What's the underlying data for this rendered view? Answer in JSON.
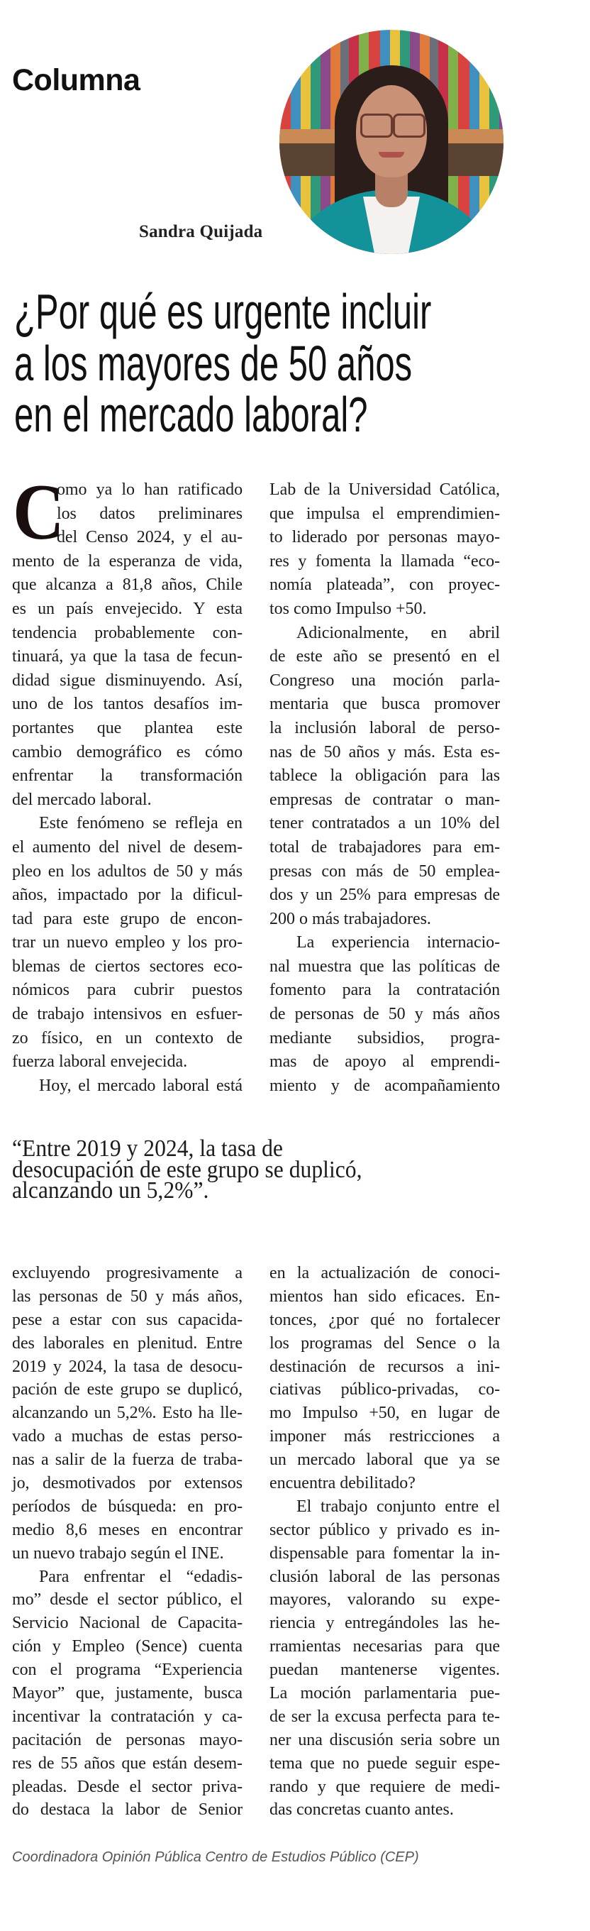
{
  "section_label": "Columna",
  "author": "Sandra Quijada",
  "headline": [
    "¿Por qué es urgente incluir",
    "a los mayores de 50 años",
    "en el mercado laboral?"
  ],
  "drop_cap": "C",
  "article": {
    "part1_left": [
      {
        "continued": false,
        "unfinished": false,
        "lines": [
          "omo ya lo han ratificado",
          "los datos preliminares",
          "del Censo 2024, y el au-",
          "mento de la esperanza de vida,",
          "que alcanza a 81,8 años, Chile",
          "es un país envejecido. Y esta",
          "tendencia probablemente con-",
          "tinuará, ya que la tasa de fecun-",
          "didad sigue disminuyendo. Así,",
          "uno de los tantos desafíos im-",
          "portantes que plantea este",
          "cambio demográfico es cómo",
          "enfrentar la transformación",
          "del mercado laboral."
        ]
      },
      {
        "continued": false,
        "unfinished": false,
        "lines": [
          "Este fenómeno se refleja en",
          "el aumento del nivel de desem-",
          "pleo en los adultos de 50 y más",
          "años, impactado por la dificul-",
          "tad para este grupo de encon-",
          "trar un nuevo empleo y los pro-",
          "blemas de ciertos sectores eco-",
          "nómicos para cubrir puestos",
          "de trabajo intensivos en esfuer-",
          "zo físico, en un contexto de",
          "fuerza laboral envejecida."
        ]
      },
      {
        "continued": false,
        "unfinished": true,
        "lines": [
          "Hoy, el mercado laboral está"
        ]
      }
    ],
    "part1_right": [
      {
        "continued": true,
        "unfinished": false,
        "lines": [
          "Lab de la Universidad Católica,",
          "que impulsa el emprendimien-",
          "to liderado por personas mayo-",
          "res y fomenta la llamada “eco-",
          "nomía plateada”, con proyec-",
          "tos como Impulso +50."
        ]
      },
      {
        "continued": false,
        "unfinished": false,
        "lines": [
          "Adicionalmente, en abril",
          "de este año se presentó en el",
          "Congreso una moción parla-",
          "mentaria que busca promover",
          "la inclusión laboral de perso-",
          "nas de 50 años y más. Esta es-",
          "tablece la obligación para las",
          "empresas de contratar o man-",
          "tener contratados a un 10% del",
          "total de trabajadores para em-",
          "presas con más de 50 emplea-",
          "dos y un 25% para empresas de",
          "200 o más trabajadores."
        ]
      },
      {
        "continued": false,
        "unfinished": true,
        "lines": [
          "La experiencia internacio-",
          "nal muestra que las políticas de",
          "fomento para la contratación",
          "de personas de 50 y más años",
          "mediante subsidios, progra-",
          "mas de apoyo al emprendi-",
          "miento y de acompañamiento"
        ]
      }
    ],
    "pull_quote": [
      "“Entre 2019 y 2024, la tasa de",
      "desocupación de este grupo se duplicó,",
      "alcanzando un 5,2%”."
    ],
    "part2_left": [
      {
        "continued": true,
        "unfinished": false,
        "lines": [
          "excluyendo progresivamente a",
          "las personas de 50 y más años,",
          "pese a estar con sus capacida-",
          "des laborales en plenitud. Entre",
          "2019 y 2024, la tasa de desocu-",
          "pación de este grupo se duplicó,",
          "alcanzando un 5,2%. Esto ha lle-",
          "vado a muchas de estas perso-",
          "nas a salir de la fuerza de traba-",
          "jo, desmotivados por extensos",
          "períodos de búsqueda: en pro-",
          "medio 8,6 meses en encontrar",
          "un nuevo trabajo según el INE."
        ]
      },
      {
        "continued": false,
        "unfinished": true,
        "lines": [
          "Para enfrentar el “edadis-",
          "mo” desde el sector público, el",
          "Servicio Nacional de Capacita-",
          "ción y Empleo (Sence) cuenta",
          "con el programa “Experiencia",
          "Mayor” que, justamente, busca",
          "incentivar la contratación y ca-",
          "pacitación de personas mayo-",
          "res de 55 años que están desem-",
          "pleadas. Desde el sector priva-",
          "do destaca la labor de Senior"
        ]
      }
    ],
    "part2_right": [
      {
        "continued": true,
        "unfinished": false,
        "lines": [
          "en la actualización de conoci-",
          "mientos han sido eficaces. En-",
          "tonces, ¿por qué no fortalecer",
          "los programas del Sence o la",
          "destinación de recursos a ini-",
          "ciativas público-privadas, co-",
          "mo Impulso +50, en lugar de",
          "imponer más restricciones a",
          "un mercado laboral que ya se",
          "encuentra debilitado?"
        ]
      },
      {
        "continued": false,
        "unfinished": false,
        "lines": [
          "El trabajo conjunto entre el",
          "sector público y privado es in-",
          "dispensable para fomentar la in-",
          "clusión laboral de las personas",
          "mayores, valorando su expe-",
          "riencia y entregándoles las he-",
          "rramientas necesarias para que",
          "puedan mantenerse vigentes.",
          "La moción parlamentaria pue-",
          "de ser la excusa perfecta para te-",
          "ner una discusión seria sobre un",
          "tema que no puede seguir espe-",
          "rando y que requiere de medi-",
          "das concretas cuanto antes."
        ]
      }
    ]
  },
  "footer": "Coordinadora Opinión Pública Centro de Estudios Público (CEP)"
}
